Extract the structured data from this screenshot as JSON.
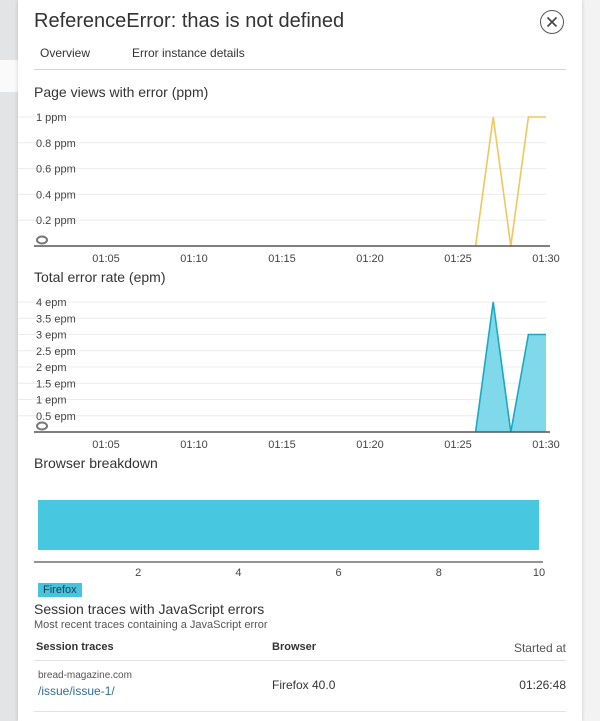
{
  "header": {
    "title": "ReferenceError: thas is not defined",
    "tabs": [
      {
        "label": "Overview"
      },
      {
        "label": "Error instance details"
      }
    ]
  },
  "page_views_chart": {
    "title": "Page views with error (ppm)",
    "chart_data": {
      "type": "line",
      "title": "Page views with error (ppm)",
      "x_ticks": [
        "01:05",
        "01:10",
        "01:15",
        "01:20",
        "01:25",
        "01:30"
      ],
      "y_ticks": [
        "1 ppm",
        "0.8 ppm",
        "0.6 ppm",
        "0.4 ppm",
        "0.2 ppm"
      ],
      "ylim": [
        0,
        1
      ],
      "x_minutes": [
        60,
        61,
        62,
        63,
        64,
        65,
        66,
        67,
        68,
        69,
        70,
        71,
        72,
        73,
        74,
        75,
        76,
        77,
        78,
        79,
        80,
        81,
        82,
        83,
        84,
        85,
        86,
        87,
        88,
        89,
        90
      ],
      "series": [
        {
          "values": [
            0,
            0,
            0,
            0,
            0,
            0,
            0,
            0,
            0,
            0,
            0,
            0,
            0,
            0,
            0,
            0,
            0,
            0,
            0,
            0,
            0,
            0,
            0,
            0,
            0,
            0,
            0,
            1,
            0,
            1,
            1
          ]
        }
      ],
      "color": "#f1c75b",
      "grid": true
    }
  },
  "error_rate_chart": {
    "title": "Total error rate (epm)",
    "chart_data": {
      "type": "area",
      "title": "Total error rate (epm)",
      "x_ticks": [
        "01:05",
        "01:10",
        "01:15",
        "01:20",
        "01:25",
        "01:30"
      ],
      "y_ticks": [
        "4 epm",
        "3.5 epm",
        "3 epm",
        "2.5 epm",
        "2 epm",
        "1.5 epm",
        "1 epm",
        "0.5 epm"
      ],
      "ylim": [
        0,
        4
      ],
      "x_minutes": [
        60,
        61,
        62,
        63,
        64,
        65,
        66,
        67,
        68,
        69,
        70,
        71,
        72,
        73,
        74,
        75,
        76,
        77,
        78,
        79,
        80,
        81,
        82,
        83,
        84,
        85,
        86,
        87,
        88,
        89,
        90
      ],
      "series": [
        {
          "values": [
            0,
            0,
            0,
            0,
            0,
            0,
            0,
            0,
            0,
            0,
            0,
            0,
            0,
            0,
            0,
            0,
            0,
            0,
            0,
            0,
            0,
            0,
            0,
            0,
            0,
            0,
            0,
            4,
            0,
            3,
            3
          ]
        }
      ],
      "color": "#1aa9c4",
      "fill": "#7fd9ea",
      "grid": true
    }
  },
  "browser_breakdown": {
    "title": "Browser breakdown",
    "chart_data": {
      "type": "bar",
      "orientation": "horizontal",
      "title": "Browser breakdown",
      "categories": [
        "Firefox"
      ],
      "values": [
        10
      ],
      "x_ticks": [
        "2",
        "4",
        "6",
        "8",
        "10"
      ],
      "xlim": [
        0,
        10
      ],
      "color": "#48c7e1"
    },
    "legend_label": "Firefox"
  },
  "session_traces": {
    "title": "Session traces with JavaScript errors",
    "subtitle": "Most recent traces containing a JavaScript error",
    "columns": [
      "Session traces",
      "Browser",
      "Started at"
    ],
    "rows": [
      {
        "domain": "bread-magazine.com",
        "path": "/issue/issue-1/",
        "browser": "Firefox 40.0",
        "started": "01:26:48"
      }
    ]
  }
}
